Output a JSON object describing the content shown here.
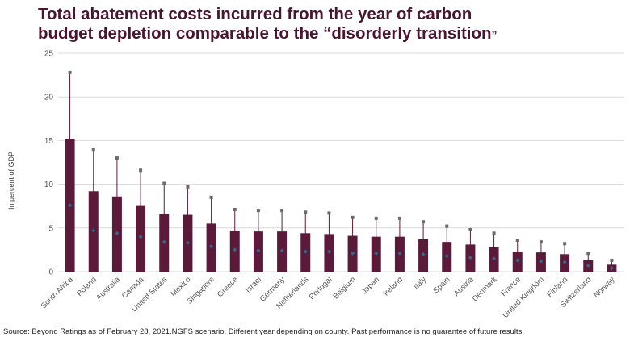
{
  "title_line1": "Total abatement costs incurred from the year of carbon",
  "title_line2": "budget depletion comparable to the “disorderly transition",
  "title_end": "”",
  "source": "Source: Beyond Ratings as of February 28, 2021.NGFS scenario. Different year depending on county. Past performance is no guarantee of future results.",
  "colors": {
    "bar": "#5c1a3a",
    "whisker": "#5c1a3a",
    "marker_top": "#6b6b6b",
    "marker_mid": "#2f6a8a",
    "grid": "#d9d9d9",
    "title": "#4a1530"
  },
  "chart_data": {
    "type": "bar",
    "ylabel": "In percent of GDP",
    "ylim": [
      0,
      25
    ],
    "yticks": [
      0,
      5,
      10,
      15,
      20,
      25
    ],
    "grid": true,
    "categories": [
      "South Africa",
      "Poland",
      "Australia",
      "Canada",
      "United States",
      "Mexico",
      "Singapore",
      "Greece",
      "Israel",
      "Germany",
      "Netherlands",
      "Portugal",
      "Belgium",
      "Japan",
      "Ireland",
      "Italy",
      "Spain",
      "Austria",
      "Denmark",
      "France",
      "United Kingdom",
      "Finland",
      "Switzerland",
      "Norway"
    ],
    "values": [
      15.2,
      9.2,
      8.6,
      7.6,
      6.6,
      6.5,
      5.5,
      4.7,
      4.6,
      4.6,
      4.4,
      4.3,
      4.1,
      4.0,
      4.0,
      3.7,
      3.4,
      3.1,
      2.8,
      2.3,
      2.2,
      2.0,
      1.3,
      0.8
    ],
    "upper": [
      22.8,
      14.0,
      13.0,
      11.6,
      10.1,
      9.7,
      8.5,
      7.1,
      7.0,
      7.0,
      6.8,
      6.7,
      6.2,
      6.1,
      6.1,
      5.7,
      5.2,
      4.8,
      4.4,
      3.6,
      3.4,
      3.2,
      2.1,
      1.3
    ],
    "midpoint": [
      7.6,
      4.7,
      4.4,
      4.0,
      3.4,
      3.3,
      2.9,
      2.5,
      2.4,
      2.4,
      2.3,
      2.3,
      2.1,
      2.1,
      2.1,
      2.0,
      1.8,
      1.6,
      1.5,
      1.3,
      1.2,
      1.1,
      0.7,
      0.4
    ]
  }
}
